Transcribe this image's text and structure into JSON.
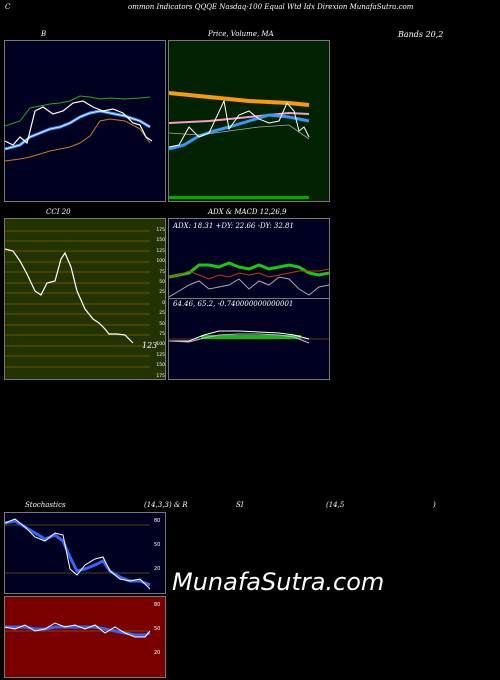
{
  "header": {
    "corner_label": "C",
    "title": "ommon Indicators QQQE Nasdaq-100 Equal Wtd Idx Direxion MunafaSutra.com"
  },
  "panels": {
    "bollinger": {
      "label": "B",
      "right_label": "Bands 20,2"
    },
    "price": {
      "label": "Price, Volume, MA",
      "label_overlay": "Price,  Volume"
    },
    "cci": {
      "label": "CCI 20",
      "value": "123",
      "ticks": [
        "175",
        "150",
        "125",
        "100",
        "75",
        "50",
        "25",
        "0",
        "25",
        "50",
        "75",
        "100",
        "125",
        "150",
        "175"
      ]
    },
    "adx": {
      "label": "ADX  & MACD 12,26,9",
      "stats": "ADX: 18.31  +DY: 22.66  -DY: 32.81"
    },
    "macd": {
      "stats": "64.46,  65.2,  -0.740000000000001"
    },
    "stoch": {
      "label": "Stochastics",
      "params": "(14,3,3) & R",
      "ticks": [
        "80",
        "50",
        "20"
      ]
    },
    "rsi": {
      "label": "SI",
      "params": "(14,5",
      "close": ")",
      "ticks": [
        "80",
        "50",
        "20"
      ]
    }
  },
  "watermark": "MunafaSutra.com",
  "colors": {
    "panel_dark": "#000020",
    "price_bg": "#002200",
    "cci_bg": "#223300",
    "rsi_bg": "#7a0000"
  }
}
